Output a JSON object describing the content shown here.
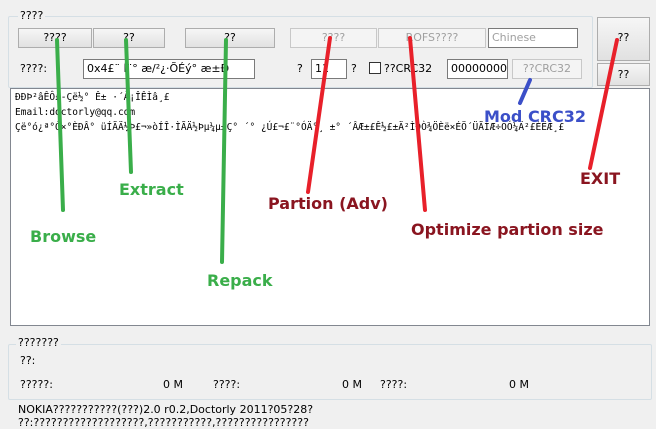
{
  "window": {
    "group_label": "????"
  },
  "buttons": {
    "browse": "????",
    "extract": "??",
    "repack": "??",
    "partition": "????",
    "rofs": "ROFS????",
    "exit": "??",
    "other": "??"
  },
  "language_select": "Chinese",
  "options": {
    "label": "????:",
    "select": "0x4£¨ Í¨° æ/²¿·ÕÉý° æ±Ð",
    "size_label": "?",
    "size_value": "11",
    "size_unit": "?",
    "checkbox_label": "??CRC32",
    "crc_value": "00000000",
    "crc_button": "??CRC32"
  },
  "log": {
    "lines": [
      "ÐÐÞ²âÊÔ£-Çë½° Ê± ·´À¡ÎÊÌâ¸£",
      "Email:doctorly@qq.com",
      "Çë°ó¿ª°Ó×°ÈÐÂ° üÍÃÄ½Þ£¬»òÍÎ·ÌÃÄ½Þµ¼µ±Ç° ´° ¿Ú£¬£¨°ÓÄ°¸ ±° ´ÂÆ±£Ê½£±Ä²ÌÐÒ¾ÖÈë×ÉÖ´ÜÃÍÆ÷ÖÓ¼Ä²£ÈËÆ¸£"
    ]
  },
  "info": {
    "group_label": "???????",
    "status_label": "??:",
    "fields": [
      {
        "label": "?????:",
        "value": "0 M"
      },
      {
        "label": "????:",
        "value": "0 M"
      },
      {
        "label": "????:",
        "value": "0 M"
      }
    ]
  },
  "footer": {
    "lines": [
      "NOKIA???????????(???)2.0 r0.2,Doctorly 2011?05?28?",
      "??:???????????????????,???????????,????????????????"
    ]
  },
  "annotations": {
    "browse": "Browse",
    "extract": "Extract",
    "repack": "Repack",
    "partition": "Partion (Adv)",
    "optimize": "Optimize partion size",
    "crc": "Mod CRC32",
    "exit": "EXIT"
  }
}
